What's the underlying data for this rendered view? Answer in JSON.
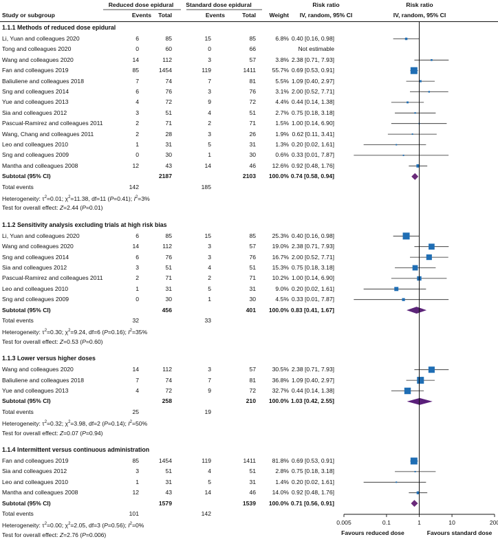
{
  "header": {
    "col1": "Study or subgroup",
    "group1": "Reduced dose epidural",
    "group2": "Standard dose epidural",
    "events": "Events",
    "total": "Total",
    "weight": "Weight",
    "rr_title": "Risk ratio",
    "rr_sub": "IV, random, 95% CI",
    "plot_title": "Risk ratio",
    "plot_sub": "IV, random, 95% CI"
  },
  "axis": {
    "ticks": [
      "0.005",
      "0.1",
      "1",
      "10",
      "200"
    ],
    "favours_left": "Favours reduced dose",
    "favours_right": "Favours standard dose"
  },
  "labels": {
    "subtotal": "Subtotal (95% CI)",
    "total_events": "Total events"
  },
  "chart_data": {
    "type": "forest",
    "xscale": "log",
    "xlim": [
      0.005,
      200
    ],
    "xlabel": "Risk ratio (IV, random, 95% CI)",
    "subgroups": [
      {
        "title": "1.1.1 Methods of reduced dose epidural",
        "studies": [
          {
            "name": "Li, Yuan and colleagues 2020",
            "e1": "6",
            "n1": "85",
            "e2": "15",
            "n2": "85",
            "weight": "6.8%",
            "ci_text": "0.40 [0.16, 0.98]",
            "rr": 0.4,
            "lo": 0.16,
            "hi": 0.98,
            "w": 6.8
          },
          {
            "name": "Tong and colleagues 2020",
            "e1": "0",
            "n1": "60",
            "e2": "0",
            "n2": "66",
            "weight": "",
            "ci_text": "Not estimable",
            "rr": null,
            "lo": null,
            "hi": null,
            "w": 0
          },
          {
            "name": "Wang and colleagues 2020",
            "e1": "14",
            "n1": "112",
            "e2": "3",
            "n2": "57",
            "weight": "3.8%",
            "ci_text": "2.38 [0.71, 7.93]",
            "rr": 2.38,
            "lo": 0.71,
            "hi": 7.93,
            "w": 3.8
          },
          {
            "name": "Fan and colleagues 2019",
            "e1": "85",
            "n1": "1454",
            "e2": "119",
            "n2": "1411",
            "weight": "55.7%",
            "ci_text": "0.69 [0.53, 0.91]",
            "rr": 0.69,
            "lo": 0.53,
            "hi": 0.91,
            "w": 55.7
          },
          {
            "name": "Baliuliene and colleagues 2018",
            "e1": "7",
            "n1": "74",
            "e2": "7",
            "n2": "81",
            "weight": "5.5%",
            "ci_text": "1.09 [0.40, 2.97]",
            "rr": 1.09,
            "lo": 0.4,
            "hi": 2.97,
            "w": 5.5
          },
          {
            "name": "Sng and colleagues 2014",
            "e1": "6",
            "n1": "76",
            "e2": "3",
            "n2": "76",
            "weight": "3.1%",
            "ci_text": "2.00 [0.52, 7.71]",
            "rr": 2.0,
            "lo": 0.52,
            "hi": 7.71,
            "w": 3.1
          },
          {
            "name": "Yue and colleagues 2013",
            "e1": "4",
            "n1": "72",
            "e2": "9",
            "n2": "72",
            "weight": "4.4%",
            "ci_text": "0.44 [0.14, 1.38]",
            "rr": 0.44,
            "lo": 0.14,
            "hi": 1.38,
            "w": 4.4
          },
          {
            "name": "Sia and colleagues 2012",
            "e1": "3",
            "n1": "51",
            "e2": "4",
            "n2": "51",
            "weight": "2.7%",
            "ci_text": "0.75 [0.18, 3.18]",
            "rr": 0.75,
            "lo": 0.18,
            "hi": 3.18,
            "w": 2.7
          },
          {
            "name": "Pascual-Ramirez and colleagues 2011",
            "e1": "2",
            "n1": "71",
            "e2": "2",
            "n2": "71",
            "weight": "1.5%",
            "ci_text": "1.00 [0.14, 6.90]",
            "rr": 1.0,
            "lo": 0.14,
            "hi": 6.9,
            "w": 1.5
          },
          {
            "name": "Wang, Chang and colleagues 2011",
            "e1": "2",
            "n1": "28",
            "e2": "3",
            "n2": "26",
            "weight": "1.9%",
            "ci_text": "0.62 [0.11, 3.41]",
            "rr": 0.62,
            "lo": 0.11,
            "hi": 3.41,
            "w": 1.9
          },
          {
            "name": "Leo and colleagues 2010",
            "e1": "1",
            "n1": "31",
            "e2": "5",
            "n2": "31",
            "weight": "1.3%",
            "ci_text": "0.20 [0.02, 1.61]",
            "rr": 0.2,
            "lo": 0.02,
            "hi": 1.61,
            "w": 1.3
          },
          {
            "name": "Sng and colleagues 2009",
            "e1": "0",
            "n1": "30",
            "e2": "1",
            "n2": "30",
            "weight": "0.6%",
            "ci_text": "0.33 [0.01, 7.87]",
            "rr": 0.33,
            "lo": 0.01,
            "hi": 7.87,
            "w": 0.6
          },
          {
            "name": "Mantha and colleagues 2008",
            "e1": "12",
            "n1": "43",
            "e2": "14",
            "n2": "46",
            "weight": "12.6%",
            "ci_text": "0.92 [0.48, 1.76]",
            "rr": 0.92,
            "lo": 0.48,
            "hi": 1.76,
            "w": 12.6
          }
        ],
        "subtotal": {
          "n1": "2187",
          "n2": "2103",
          "weight": "100.0%",
          "ci_text": "0.74 [0.58, 0.94]",
          "rr": 0.74,
          "lo": 0.58,
          "hi": 0.94,
          "color": "#6a2a7a"
        },
        "events": {
          "e1": "142",
          "e2": "185"
        },
        "heterogeneity": {
          "tau2": "0.01",
          "chi2": "11.38",
          "df": "11",
          "p": "0.41",
          "i2": "3%"
        },
        "overall": {
          "z": "2.44",
          "p": "0.01"
        }
      },
      {
        "title": "1.1.2 Sensitivity analysis excluding trials at high risk bias",
        "studies": [
          {
            "name": "Li, Yuan and colleagues 2020",
            "e1": "6",
            "n1": "85",
            "e2": "15",
            "n2": "85",
            "weight": "25.3%",
            "ci_text": "0.40 [0.16, 0.98]",
            "rr": 0.4,
            "lo": 0.16,
            "hi": 0.98,
            "w": 25.3
          },
          {
            "name": "Wang and colleagues 2020",
            "e1": "14",
            "n1": "112",
            "e2": "3",
            "n2": "57",
            "weight": "19.0%",
            "ci_text": "2.38 [0.71, 7.93]",
            "rr": 2.38,
            "lo": 0.71,
            "hi": 7.93,
            "w": 19.0
          },
          {
            "name": "Sng and colleagues 2014",
            "e1": "6",
            "n1": "76",
            "e2": "3",
            "n2": "76",
            "weight": "16.7%",
            "ci_text": "2.00 [0.52, 7.71]",
            "rr": 2.0,
            "lo": 0.52,
            "hi": 7.71,
            "w": 16.7
          },
          {
            "name": "Sia and colleagues 2012",
            "e1": "3",
            "n1": "51",
            "e2": "4",
            "n2": "51",
            "weight": "15.3%",
            "ci_text": "0.75 [0.18, 3.18]",
            "rr": 0.75,
            "lo": 0.18,
            "hi": 3.18,
            "w": 15.3
          },
          {
            "name": "Pascual-Ramirez and colleagues 2011",
            "e1": "2",
            "n1": "71",
            "e2": "2",
            "n2": "71",
            "weight": "10.2%",
            "ci_text": "1.00 [0.14, 6.90]",
            "rr": 1.0,
            "lo": 0.14,
            "hi": 6.9,
            "w": 10.2
          },
          {
            "name": "Leo and colleagues 2010",
            "e1": "1",
            "n1": "31",
            "e2": "5",
            "n2": "31",
            "weight": "9.0%",
            "ci_text": "0.20 [0.02, 1.61]",
            "rr": 0.2,
            "lo": 0.02,
            "hi": 1.61,
            "w": 9.0
          },
          {
            "name": "Sng and colleagues 2009",
            "e1": "0",
            "n1": "30",
            "e2": "1",
            "n2": "30",
            "weight": "4.5%",
            "ci_text": "0.33 [0.01, 7.87]",
            "rr": 0.33,
            "lo": 0.01,
            "hi": 7.87,
            "w": 4.5
          }
        ],
        "subtotal": {
          "n1": "456",
          "n2": "401",
          "weight": "100.0%",
          "ci_text": "0.83 [0.41, 1.67]",
          "rr": 0.83,
          "lo": 0.41,
          "hi": 1.67,
          "color": "#5b2478"
        },
        "events": {
          "e1": "32",
          "e2": "33"
        },
        "heterogeneity": {
          "tau2": "0.30",
          "chi2": "9.24",
          "df": "6",
          "p": "0.16",
          "i2": "35%"
        },
        "overall": {
          "z": "0.53",
          "p": "0.60"
        }
      },
      {
        "title": "1.1.3 Lower versus higher doses",
        "studies": [
          {
            "name": "Wang and colleagues 2020",
            "e1": "14",
            "n1": "112",
            "e2": "3",
            "n2": "57",
            "weight": "30.5%",
            "ci_text": "2.38 [0.71, 7.93]",
            "rr": 2.38,
            "lo": 0.71,
            "hi": 7.93,
            "w": 30.5
          },
          {
            "name": "Baliuliene and colleagues 2018",
            "e1": "7",
            "n1": "74",
            "e2": "7",
            "n2": "81",
            "weight": "36.8%",
            "ci_text": "1.09 [0.40, 2.97]",
            "rr": 1.09,
            "lo": 0.4,
            "hi": 2.97,
            "w": 36.8
          },
          {
            "name": "Yue and colleagues 2013",
            "e1": "4",
            "n1": "72",
            "e2": "9",
            "n2": "72",
            "weight": "32.7%",
            "ci_text": "0.44 [0.14, 1.38]",
            "rr": 0.44,
            "lo": 0.14,
            "hi": 1.38,
            "w": 32.7
          }
        ],
        "subtotal": {
          "n1": "258",
          "n2": "210",
          "weight": "100.0%",
          "ci_text": "1.03 [0.42, 2.55]",
          "rr": 1.03,
          "lo": 0.42,
          "hi": 2.55,
          "color": "#5a1f7a"
        },
        "events": {
          "e1": "25",
          "e2": "19"
        },
        "heterogeneity": {
          "tau2": "0.32",
          "chi2": "3.98",
          "df": "2",
          "p": "0.14",
          "i2": "50%"
        },
        "overall": {
          "z": "0.07",
          "p": "0.94"
        }
      },
      {
        "title": "1.1.4 Intermittent versus continuous administration",
        "studies": [
          {
            "name": "Fan and colleagues 2019",
            "e1": "85",
            "n1": "1454",
            "e2": "119",
            "n2": "1411",
            "weight": "81.8%",
            "ci_text": "0.69 [0.53, 0.91]",
            "rr": 0.69,
            "lo": 0.53,
            "hi": 0.91,
            "w": 81.8
          },
          {
            "name": "Sia and colleagues 2012",
            "e1": "3",
            "n1": "51",
            "e2": "4",
            "n2": "51",
            "weight": "2.8%",
            "ci_text": "0.75 [0.18, 3.18]",
            "rr": 0.75,
            "lo": 0.18,
            "hi": 3.18,
            "w": 2.8
          },
          {
            "name": "Leo and colleagues 2010",
            "e1": "1",
            "n1": "31",
            "e2": "5",
            "n2": "31",
            "weight": "1.4%",
            "ci_text": "0.20 [0.02, 1.61]",
            "rr": 0.2,
            "lo": 0.02,
            "hi": 1.61,
            "w": 1.4
          },
          {
            "name": "Mantha and colleagues 2008",
            "e1": "12",
            "n1": "43",
            "e2": "14",
            "n2": "46",
            "weight": "14.0%",
            "ci_text": "0.92 [0.48, 1.76]",
            "rr": 0.92,
            "lo": 0.48,
            "hi": 1.76,
            "w": 14.0
          }
        ],
        "subtotal": {
          "n1": "1579",
          "n2": "1539",
          "weight": "100.0%",
          "ci_text": "0.71 [0.56, 0.91]",
          "rr": 0.71,
          "lo": 0.56,
          "hi": 0.91,
          "color": "#6a2a7a"
        },
        "events": {
          "e1": "101",
          "e2": "142"
        },
        "heterogeneity": {
          "tau2": "0.00",
          "chi2": "2.05",
          "df": "3",
          "p": "0.56",
          "i2": "0%"
        },
        "overall": {
          "z": "2.76",
          "p": "0.006"
        }
      }
    ],
    "colors": {
      "square": "#1f6eb4",
      "line": "#222222",
      "diamond_dark": "#5a1f7a"
    }
  }
}
